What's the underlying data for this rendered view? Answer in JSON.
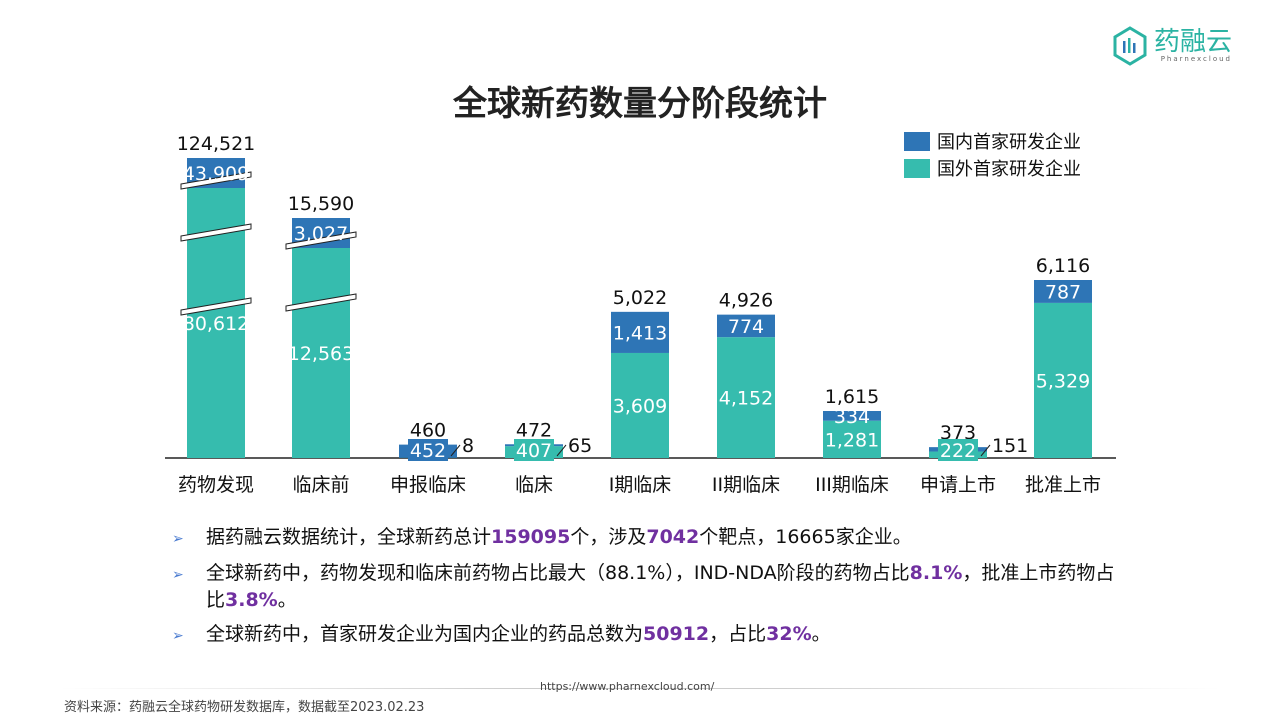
{
  "logo": {
    "name": "药融云",
    "sub": "Pharnexcloud"
  },
  "chart_data": {
    "type": "bar",
    "stacked": true,
    "title": "全球新药数量分阶段统计",
    "categories": [
      "药物发现",
      "临床前",
      "申报临床",
      "临床",
      "I期临床",
      "II期临床",
      "III期临床",
      "申请上市",
      "批准上市"
    ],
    "series": [
      {
        "name": "国内首家研发企业",
        "color": "#2e75b6",
        "values": [
          43909,
          3027,
          452,
          65,
          1413,
          774,
          334,
          151,
          787
        ],
        "labels": [
          "43,909",
          "3,027",
          "452",
          "65",
          "1,413",
          "774",
          "334",
          "151",
          "787"
        ]
      },
      {
        "name": "国外首家研发企业",
        "color": "#36bcae",
        "values": [
          80612,
          12563,
          8,
          407,
          3609,
          4152,
          1281,
          222,
          5329
        ],
        "labels": [
          "80,612",
          "12,563",
          "8",
          "407",
          "3,609",
          "4,152",
          "1,281",
          "222",
          "5,329"
        ]
      }
    ],
    "totals": [
      "124,521",
      "15,590",
      "460",
      "472",
      "5,022",
      "4,926",
      "1,615",
      "373",
      "6,116"
    ],
    "axis_breaks": [
      "药物发现",
      "临床前"
    ],
    "legend": "top-right"
  },
  "bullets": [
    [
      {
        "t": "据药融云数据统计，全球新药总计"
      },
      {
        "t": "159095",
        "hl": true
      },
      {
        "t": "个，涉及"
      },
      {
        "t": "7042",
        "hl": true
      },
      {
        "t": "个靶点，16665家企业。"
      }
    ],
    [
      {
        "t": "全球新药中，药物发现和临床前药物占比最大（88.1%），IND-NDA阶段的药物占比"
      },
      {
        "t": "8.1%",
        "hl": true
      },
      {
        "t": "，批准上市药物占比"
      },
      {
        "t": "3.8%",
        "hl": true
      },
      {
        "t": "。"
      }
    ],
    [
      {
        "t": "全球新药中，首家研发企业为国内企业的药品总数为"
      },
      {
        "t": "50912",
        "hl": true
      },
      {
        "t": "，占比"
      },
      {
        "t": "32%",
        "hl": true
      },
      {
        "t": "。"
      }
    ]
  ],
  "bullet_marker": "➢",
  "footer": {
    "url": "https://www.pharnexcloud.com/",
    "source": "资料来源：药融云全球药物研发数据库，数据截至2023.02.23"
  }
}
